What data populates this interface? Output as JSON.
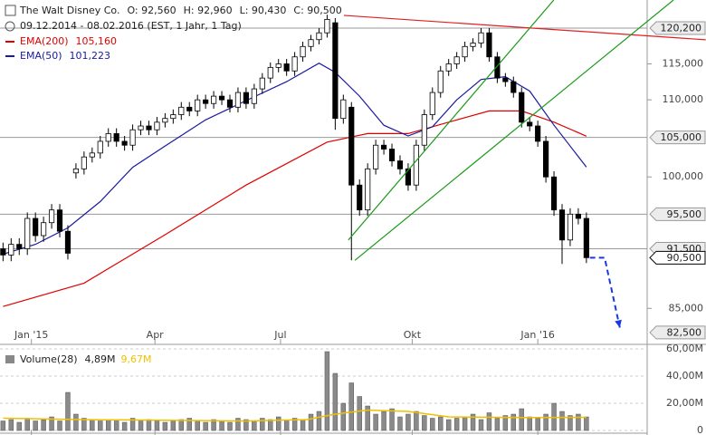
{
  "chart_data": {
    "type": "candlestick",
    "title": "The Walt Disney Co.",
    "quote": [
      "O: 92,560",
      "H: 92,960",
      "L: 90,430",
      "C: 90,500"
    ],
    "subtitle": "09.12.2014 - 08.02.2016 (EST, 1 Jahr, 1 Tag)",
    "x": [
      0,
      4,
      8,
      12,
      16,
      20,
      24,
      28,
      32,
      36,
      40,
      44,
      48,
      52,
      56,
      60,
      64,
      68,
      72,
      76,
      80,
      84,
      88,
      92,
      96,
      100,
      104,
      108,
      112,
      116,
      120,
      124,
      128,
      132,
      136,
      140,
      144,
      148,
      152,
      156,
      160,
      164,
      168,
      172,
      176,
      180,
      184,
      188,
      192,
      196,
      200,
      204,
      208,
      212,
      216,
      220,
      224,
      228,
      232,
      236,
      240,
      244,
      248,
      252,
      256,
      260,
      264,
      268,
      272,
      276,
      280,
      284,
      288
    ],
    "open": [
      91500,
      90800,
      92000,
      91500,
      95000,
      93000,
      94500,
      96000,
      93500,
      100500,
      101000,
      102500,
      103000,
      104500,
      105500,
      104500,
      104000,
      106000,
      106500,
      106000,
      107000,
      107500,
      108000,
      109000,
      108500,
      110000,
      109500,
      110500,
      110000,
      109000,
      111000,
      109500,
      111500,
      113000,
      114500,
      115000,
      114000,
      116000,
      117500,
      118500,
      119500,
      121000,
      107500,
      109000,
      99000,
      96000,
      101000,
      104000,
      103500,
      102000,
      101000,
      99000,
      104000,
      108000,
      111000,
      114000,
      115000,
      116000,
      117500,
      118000,
      119500,
      116000,
      113000,
      112500,
      111000,
      107000,
      106500,
      104500,
      100000,
      96000,
      92500,
      95500,
      95000
    ],
    "high": [
      92200,
      92700,
      92700,
      95700,
      95700,
      95200,
      96700,
      96700,
      94200,
      101700,
      103200,
      103700,
      105200,
      106200,
      106200,
      105200,
      106700,
      107200,
      107200,
      107700,
      108200,
      108700,
      109700,
      109700,
      110700,
      110700,
      111200,
      111200,
      110700,
      111700,
      111700,
      112200,
      113700,
      115200,
      115700,
      115700,
      116700,
      118200,
      119200,
      120200,
      122200,
      121700,
      110700,
      109700,
      99700,
      101700,
      104700,
      104700,
      104200,
      102700,
      101700,
      104700,
      108700,
      111700,
      114700,
      115700,
      116700,
      118200,
      118700,
      120200,
      120200,
      116700,
      113700,
      113200,
      111700,
      107700,
      107200,
      105200,
      100700,
      96700,
      96200,
      96200,
      95700
    ],
    "low": [
      90100,
      90100,
      90800,
      90800,
      92300,
      92300,
      93800,
      92800,
      90300,
      99800,
      100300,
      101800,
      102300,
      103800,
      103800,
      103300,
      103300,
      105300,
      105300,
      105300,
      106300,
      106800,
      107300,
      107800,
      107800,
      108800,
      108800,
      109300,
      108300,
      108300,
      108800,
      108800,
      110800,
      112300,
      113800,
      113300,
      113300,
      115300,
      116800,
      117800,
      118800,
      106000,
      106800,
      90200,
      95300,
      95300,
      100300,
      102800,
      101300,
      100300,
      98300,
      98300,
      103300,
      107300,
      110300,
      113300,
      114300,
      115300,
      116800,
      117300,
      115300,
      112300,
      111800,
      110300,
      106300,
      105800,
      103800,
      99300,
      95300,
      89800,
      91800,
      94300,
      89900
    ],
    "close": [
      90800,
      92000,
      91500,
      95000,
      93000,
      94500,
      96000,
      93500,
      91000,
      101000,
      102500,
      103000,
      104500,
      105500,
      104500,
      104000,
      106000,
      106500,
      106000,
      107000,
      107500,
      108000,
      109000,
      108500,
      110000,
      109500,
      110500,
      110000,
      109000,
      111000,
      109500,
      111500,
      113000,
      114500,
      115000,
      114000,
      116000,
      117500,
      118500,
      119500,
      121500,
      107500,
      110000,
      99000,
      96000,
      101000,
      104000,
      103500,
      102000,
      101000,
      99000,
      104000,
      108000,
      111000,
      114000,
      115000,
      116000,
      117500,
      118000,
      119500,
      116000,
      113000,
      112500,
      111000,
      107000,
      106500,
      104500,
      100000,
      96000,
      92500,
      95500,
      95000,
      90500
    ],
    "up_color": "#ffffff",
    "down_color": "#000000",
    "xlim": [
      -1.5,
      318
    ],
    "xticks": [
      {
        "value": 14,
        "label": "Jan '15"
      },
      {
        "value": 75,
        "label": "Apr"
      },
      {
        "value": 137,
        "label": "Jul"
      },
      {
        "value": 202,
        "label": "Okt"
      },
      {
        "value": 264,
        "label": "Jan '16"
      }
    ],
    "ylim": [
      81300,
      124450
    ],
    "log_scale": true,
    "yticks": [
      {
        "value": 85000,
        "label": "85,000"
      },
      {
        "value": 100000,
        "label": "100,000"
      },
      {
        "value": 110000,
        "label": "110,000"
      },
      {
        "value": 115000,
        "label": "115,000"
      }
    ],
    "levels": [
      {
        "value": 120200,
        "label": "120,200",
        "line": true,
        "style": "level"
      },
      {
        "value": 105000,
        "label": "105,000",
        "line": true,
        "style": "level"
      },
      {
        "value": 95500,
        "label": "95,500",
        "line": true,
        "style": "level"
      },
      {
        "value": 91500,
        "label": "91,500",
        "line": true,
        "style": "level"
      },
      {
        "value": 90500,
        "label": "90,500",
        "line": false,
        "style": "current"
      },
      {
        "value": 82500,
        "label": "82,500",
        "line": false,
        "style": "level"
      }
    ],
    "series": [
      {
        "name": "EMA(200)",
        "color": "#e00000",
        "last_label": "105,160",
        "x": [
          0,
          40,
          80,
          120,
          160,
          180,
          200,
          220,
          240,
          256,
          272,
          288
        ],
        "values": [
          85200,
          87700,
          93100,
          99000,
          104400,
          105500,
          105500,
          107000,
          108500,
          108500,
          107000,
          105160
        ]
      },
      {
        "name": "EMA(50)",
        "color": "#1a1aa0",
        "last_label": "101,223",
        "x": [
          0,
          16,
          32,
          48,
          64,
          80,
          100,
          120,
          140,
          156,
          164,
          176,
          188,
          200,
          212,
          224,
          236,
          248,
          260,
          272,
          288
        ],
        "values": [
          90900,
          92000,
          93900,
          97000,
          101200,
          103900,
          107300,
          109900,
          112500,
          115100,
          113800,
          110500,
          106600,
          105200,
          106400,
          110000,
          112800,
          113200,
          111200,
          106600,
          101223
        ]
      }
    ],
    "trendlines": [
      {
        "color": "#e02020",
        "points": [
          [
            168.3,
            122100
          ],
          [
            346.9,
            118480
          ]
        ]
      },
      {
        "color": "#1a9a1a",
        "points": [
          [
            170.5,
            92500
          ],
          [
            271.9,
            124450
          ]
        ]
      },
      {
        "color": "#1a9a1a",
        "points": [
          [
            173.7,
            90200
          ],
          [
            331,
            124450
          ]
        ]
      }
    ],
    "arrow": {
      "color": "#1a3ae0",
      "points": [
        [
          289.7,
          90500
        ],
        [
          297,
          90500
        ],
        [
          304.5,
          83000
        ]
      ]
    },
    "volume": {
      "name": "Volume(28)",
      "color": "#8a8a8a",
      "last_label": "4,89M",
      "values": [
        7,
        8,
        6,
        9,
        7,
        8,
        10,
        7,
        28,
        12,
        9,
        8,
        7,
        8,
        7,
        6,
        9,
        7,
        8,
        7,
        6,
        7,
        8,
        9,
        7,
        6,
        8,
        7,
        6,
        9,
        8,
        7,
        9,
        8,
        10,
        7,
        9,
        8,
        12,
        14,
        58,
        42,
        20,
        35,
        25,
        18,
        12,
        14,
        16,
        10,
        12,
        14,
        11,
        9,
        10,
        8,
        9,
        10,
        12,
        8,
        13,
        9,
        11,
        12,
        16,
        10,
        9,
        12,
        20,
        14,
        11,
        12,
        10
      ],
      "average": {
        "color": "#f0c000",
        "last_label": "9,67M",
        "x": [
          0,
          40,
          80,
          120,
          150,
          164,
          180,
          200,
          220,
          260,
          288
        ],
        "values": [
          9,
          8,
          7.5,
          7,
          8,
          12,
          15,
          14,
          10,
          9.5,
          9.67
        ]
      },
      "ylim": [
        0,
        62
      ],
      "yticks": [
        0,
        {
          "value": 20,
          "label": "20,00M"
        },
        {
          "value": 40,
          "label": "40,00M"
        },
        {
          "value": 60,
          "label": "60,00M"
        }
      ]
    }
  }
}
